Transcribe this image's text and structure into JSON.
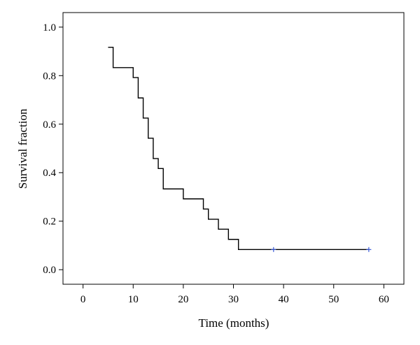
{
  "chart_data": {
    "type": "line",
    "title": "",
    "xlabel": "Time (months)",
    "ylabel": "Survival fraction",
    "xlim": [
      -4,
      64
    ],
    "ylim": [
      -0.06,
      1.06
    ],
    "xticks": [
      0,
      10,
      20,
      30,
      40,
      50,
      60
    ],
    "yticks": [
      0.0,
      0.2,
      0.4,
      0.6,
      0.8,
      1.0
    ],
    "ytick_labels": [
      "0.0",
      "0.2",
      "0.4",
      "0.6",
      "0.8",
      "1.0"
    ],
    "grid": false,
    "series": [
      {
        "step": "post",
        "x": [
          5,
          6,
          9,
          10,
          11,
          12,
          13,
          14,
          15,
          16,
          20,
          24,
          25,
          27,
          29,
          31,
          57
        ],
        "y": [
          0.917,
          0.833,
          0.833,
          0.792,
          0.708,
          0.625,
          0.542,
          0.458,
          0.417,
          0.333,
          0.292,
          0.25,
          0.208,
          0.167,
          0.125,
          0.083,
          0.083
        ],
        "color": "#000000"
      }
    ],
    "censored": {
      "x": [
        38,
        57
      ],
      "y": [
        0.083,
        0.083
      ],
      "color": "#3b5bd6"
    }
  }
}
